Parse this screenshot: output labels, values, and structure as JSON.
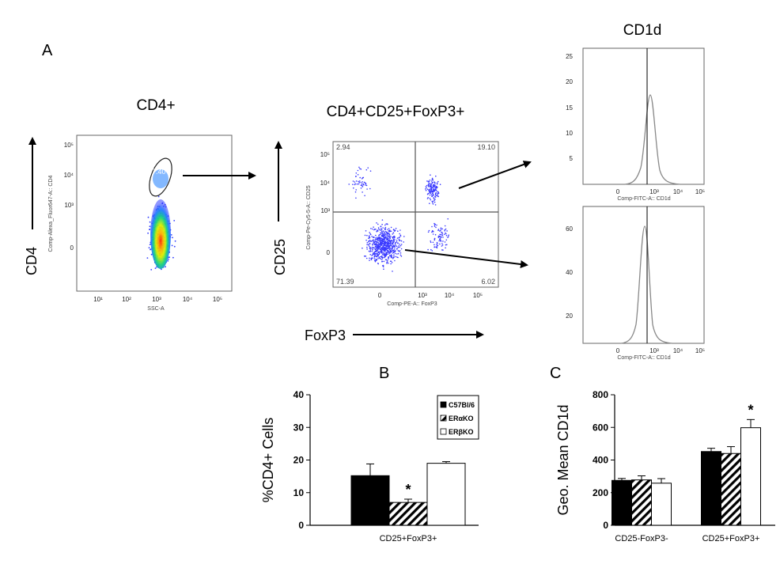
{
  "panel_labels": {
    "a": "A",
    "b": "B",
    "c": "C"
  },
  "flow": {
    "cd4_plot": {
      "title": "CD4+",
      "big_y_label": "CD4",
      "y_axis_label": "Comp-Alexa_Fluor647-A:: CD4",
      "x_axis_label": "SSC-A",
      "gate_value": "7.40",
      "y_ticks": [
        "10⁵",
        "10⁴",
        "10³",
        "0"
      ],
      "x_ticks": [
        "10¹",
        "10²",
        "10³",
        "10⁴",
        "10⁵"
      ]
    },
    "quad_plot": {
      "title": "CD4+CD25+FoxP3+",
      "big_y_label": "CD25",
      "big_x_label": "FoxP3",
      "y_axis_label": "Comp-Pe-Cy5-5-A:: CD25",
      "x_axis_label": "Comp-PE-A:: FoxP3",
      "q_ul": "2.94",
      "q_ur": "19.10",
      "q_ll": "71.39",
      "q_lr": "6.02",
      "y_ticks": [
        "10⁵",
        "10⁴",
        "10³",
        "0"
      ],
      "x_ticks": [
        "0",
        "10³",
        "10⁴",
        "10⁵"
      ]
    },
    "hist_title": "CD1d",
    "hist_top": {
      "x_axis_label": "Comp-FITC-A:: CD1d",
      "y_ticks": [
        "25",
        "20",
        "15",
        "10",
        "5"
      ],
      "x_ticks": [
        "0",
        "10³",
        "10⁴",
        "10⁵"
      ]
    },
    "hist_bottom": {
      "x_axis_label": "Comp-FITC-A:: CD1d",
      "y_ticks": [
        "60",
        "40",
        "20"
      ],
      "x_ticks": [
        "0",
        "10³",
        "10⁴",
        "10⁵"
      ]
    }
  },
  "chart_data": [
    {
      "type": "bar",
      "panel": "B",
      "title": "",
      "xlabel": "",
      "ylabel": "%CD4+ Cells",
      "ylim": [
        0,
        40
      ],
      "yticks": [
        "0",
        "10",
        "20",
        "30",
        "40"
      ],
      "categories": [
        "CD25+FoxP3+"
      ],
      "series": [
        {
          "name": "C57Bl/6",
          "values": [
            15.2
          ],
          "errors": [
            3.6
          ],
          "fill": "#000000"
        },
        {
          "name": "ERαKO",
          "values": [
            7.0
          ],
          "errors": [
            1.0
          ],
          "fill": "hatch"
        },
        {
          "name": "ERβKO",
          "values": [
            19.0
          ],
          "errors": [
            0.5
          ],
          "fill": "#ffffff"
        }
      ],
      "annotations": [
        {
          "text": "*",
          "series": 1,
          "category": 0
        }
      ],
      "legend": "top-right"
    },
    {
      "type": "bar",
      "panel": "C",
      "title": "",
      "xlabel": "",
      "ylabel": "Geo. Mean CD1d",
      "ylim": [
        0,
        800
      ],
      "yticks": [
        "0",
        "200",
        "400",
        "600",
        "800"
      ],
      "categories": [
        "CD25-FoxP3-",
        "CD25+FoxP3+"
      ],
      "series": [
        {
          "name": "C57Bl/6",
          "values": [
            275,
            452
          ],
          "errors": [
            12,
            20
          ],
          "fill": "#000000"
        },
        {
          "name": "ERαKO",
          "values": [
            278,
            440
          ],
          "errors": [
            25,
            42
          ],
          "fill": "hatch"
        },
        {
          "name": "ERβKO",
          "values": [
            258,
            598
          ],
          "errors": [
            28,
            50
          ],
          "fill": "#ffffff"
        }
      ],
      "annotations": [
        {
          "text": "*",
          "series": 2,
          "category": 1
        }
      ],
      "legend": "none"
    }
  ]
}
